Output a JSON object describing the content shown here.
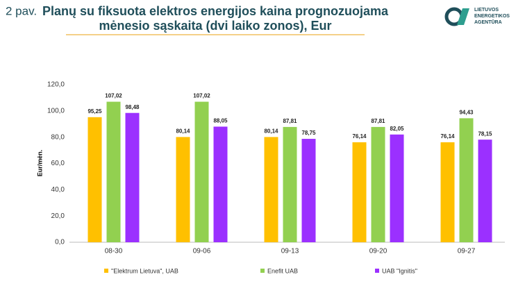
{
  "figure_label": "2 pav.",
  "logo": {
    "lines": [
      "LIETUVOS",
      "ENERGETIKOS",
      "AGENTŪRA"
    ]
  },
  "chart_data": {
    "type": "bar",
    "title": [
      "Planų su fiksuota elektros energijos kaina prognozuojama",
      "mėnesio sąskaita (dvi laiko zonos), Eur"
    ],
    "y_label": "Eur/mėn.",
    "categories": [
      "08-30",
      "09-06",
      "09-13",
      "09-20",
      "09-27"
    ],
    "series": [
      {
        "name": "\"Elektrum Lietuva\", UAB",
        "color": "#ffc000",
        "values": [
          95.25,
          80.14,
          80.14,
          76.14,
          76.14
        ],
        "value_labels": [
          "95,25",
          "80,14",
          "80,14",
          "76,14",
          "76,14"
        ]
      },
      {
        "name": "Enefit UAB",
        "color": "#92d050",
        "values": [
          107.02,
          107.02,
          87.81,
          87.81,
          94.43
        ],
        "value_labels": [
          "107,02",
          "107,02",
          "87,81",
          "87,81",
          "94,43"
        ]
      },
      {
        "name": "UAB \"Ignitis\"",
        "color": "#9b30ff",
        "values": [
          98.48,
          88.05,
          78.75,
          82.05,
          78.15
        ],
        "value_labels": [
          "98,48",
          "88,05",
          "78,75",
          "82,05",
          "78,15"
        ]
      }
    ],
    "ylim": [
      0,
      120
    ],
    "yticks": [
      {
        "value": 0,
        "label": "0,0"
      },
      {
        "value": 20,
        "label": "20,0"
      },
      {
        "value": 40,
        "label": "40,0"
      },
      {
        "value": 60,
        "label": "60,0"
      },
      {
        "value": 80,
        "label": "80,0"
      },
      {
        "value": 100,
        "label": "100,0"
      },
      {
        "value": 120,
        "label": "120,0"
      }
    ],
    "legend": "bottom"
  }
}
